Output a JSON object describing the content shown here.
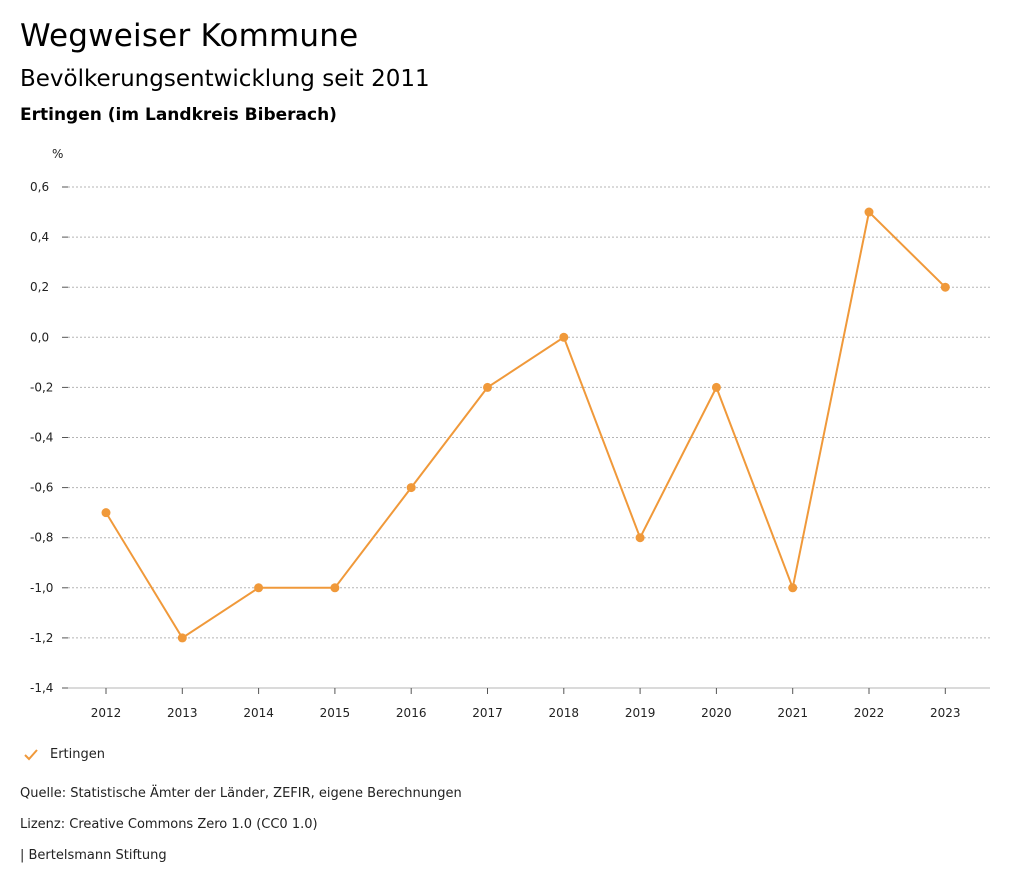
{
  "header": {
    "title": "Wegweiser Kommune",
    "subtitle": "Bevölkerungsentwicklung seit 2011",
    "region": "Ertingen (im Landkreis Biberach)"
  },
  "chart_data": {
    "type": "line",
    "ylabel": "%",
    "x": [
      "2012",
      "2013",
      "2014",
      "2015",
      "2016",
      "2017",
      "2018",
      "2019",
      "2020",
      "2021",
      "2022",
      "2023"
    ],
    "series": [
      {
        "name": "Ertingen",
        "color": "#f0993a",
        "values": [
          -0.7,
          -1.2,
          -1.0,
          -1.0,
          -0.6,
          -0.2,
          0.0,
          -0.8,
          -0.2,
          -1.0,
          0.5,
          0.2
        ]
      }
    ],
    "ylim": [
      -1.4,
      0.6
    ],
    "yticks": [
      "0,6",
      "0,4",
      "0,2",
      "0,0",
      "-0,2",
      "-0,4",
      "-0,6",
      "-0,8",
      "-1,0",
      "-1,2",
      "-1,4"
    ],
    "grid": true,
    "legend_position": "bottom-left"
  },
  "legend": {
    "label": "Ertingen",
    "icon": "check-icon"
  },
  "footer": {
    "source": "Quelle: Statistische Ämter der Länder, ZEFIR, eigene Berechnungen",
    "license": "Lizenz: Creative Commons Zero 1.0 (CC0 1.0)",
    "publisher": "| Bertelsmann Stiftung"
  }
}
